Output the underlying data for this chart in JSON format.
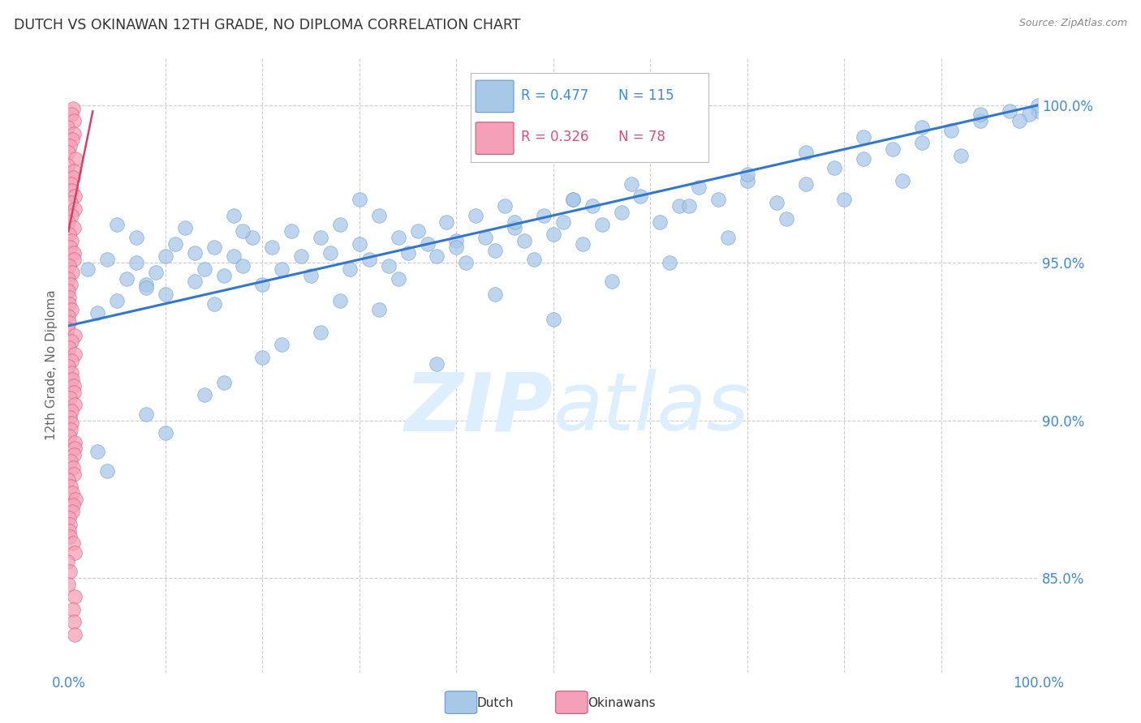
{
  "title": "DUTCH VS OKINAWAN 12TH GRADE, NO DIPLOMA CORRELATION CHART",
  "source": "Source: ZipAtlas.com",
  "ylabel": "12th Grade, No Diploma",
  "ytick_positions": [
    0.85,
    0.9,
    0.95,
    1.0
  ],
  "ytick_labels": [
    "85.0%",
    "90.0%",
    "95.0%",
    "100.0%"
  ],
  "xlim": [
    0.0,
    1.0
  ],
  "ylim": [
    0.82,
    1.015
  ],
  "dutch_color": "#a8c8e8",
  "dutch_edge_color": "#6699cc",
  "okinawan_color": "#f4a0b8",
  "okinawan_edge_color": "#cc5577",
  "trend_color": "#3377cc",
  "trend_linewidth": 2.2,
  "okinawan_trend_color": "#cc4466",
  "okinawan_trend_linewidth": 1.8,
  "background_color": "#ffffff",
  "grid_color": "#cccccc",
  "axis_label_color": "#4488cc",
  "title_color": "#333333",
  "source_color": "#888888",
  "watermark_color": "#ddeeff",
  "scatter_size": 160,
  "dutch_x": [
    0.02,
    0.03,
    0.04,
    0.05,
    0.05,
    0.06,
    0.07,
    0.07,
    0.08,
    0.09,
    0.1,
    0.1,
    0.11,
    0.12,
    0.13,
    0.13,
    0.14,
    0.15,
    0.15,
    0.16,
    0.17,
    0.17,
    0.18,
    0.19,
    0.2,
    0.21,
    0.22,
    0.23,
    0.24,
    0.25,
    0.26,
    0.27,
    0.28,
    0.29,
    0.3,
    0.31,
    0.32,
    0.33,
    0.34,
    0.35,
    0.36,
    0.37,
    0.38,
    0.39,
    0.4,
    0.41,
    0.42,
    0.43,
    0.44,
    0.45,
    0.46,
    0.47,
    0.48,
    0.49,
    0.5,
    0.51,
    0.52,
    0.53,
    0.54,
    0.55,
    0.57,
    0.59,
    0.61,
    0.63,
    0.65,
    0.67,
    0.7,
    0.73,
    0.76,
    0.79,
    0.82,
    0.85,
    0.88,
    0.91,
    0.94,
    0.97,
    1.0,
    1.0,
    0.99,
    0.98,
    0.03,
    0.08,
    0.14,
    0.2,
    0.26,
    0.32,
    0.38,
    0.44,
    0.5,
    0.56,
    0.62,
    0.68,
    0.74,
    0.8,
    0.86,
    0.92,
    0.04,
    0.1,
    0.16,
    0.22,
    0.28,
    0.34,
    0.4,
    0.46,
    0.52,
    0.58,
    0.64,
    0.7,
    0.76,
    0.82,
    0.88,
    0.94,
    0.08,
    0.18,
    0.3
  ],
  "dutch_y": [
    0.948,
    0.934,
    0.951,
    0.938,
    0.962,
    0.945,
    0.95,
    0.958,
    0.943,
    0.947,
    0.952,
    0.94,
    0.956,
    0.961,
    0.944,
    0.953,
    0.948,
    0.937,
    0.955,
    0.946,
    0.952,
    0.965,
    0.949,
    0.958,
    0.943,
    0.955,
    0.948,
    0.96,
    0.952,
    0.946,
    0.958,
    0.953,
    0.962,
    0.948,
    0.956,
    0.951,
    0.965,
    0.949,
    0.958,
    0.953,
    0.96,
    0.956,
    0.952,
    0.963,
    0.957,
    0.95,
    0.965,
    0.958,
    0.954,
    0.968,
    0.961,
    0.957,
    0.951,
    0.965,
    0.959,
    0.963,
    0.97,
    0.956,
    0.968,
    0.962,
    0.966,
    0.971,
    0.963,
    0.968,
    0.974,
    0.97,
    0.976,
    0.969,
    0.975,
    0.98,
    0.983,
    0.986,
    0.988,
    0.992,
    0.995,
    0.998,
    1.0,
    0.998,
    0.997,
    0.995,
    0.89,
    0.902,
    0.908,
    0.92,
    0.928,
    0.935,
    0.918,
    0.94,
    0.932,
    0.944,
    0.95,
    0.958,
    0.964,
    0.97,
    0.976,
    0.984,
    0.884,
    0.896,
    0.912,
    0.924,
    0.938,
    0.945,
    0.955,
    0.963,
    0.97,
    0.975,
    0.968,
    0.978,
    0.985,
    0.99,
    0.993,
    0.997,
    0.942,
    0.96,
    0.97
  ],
  "okinawan_x": [
    0.003,
    0.003,
    0.003,
    0.003,
    0.003,
    0.003,
    0.003,
    0.003,
    0.003,
    0.003,
    0.003,
    0.003,
    0.003,
    0.003,
    0.003,
    0.003,
    0.003,
    0.003,
    0.003,
    0.003,
    0.003,
    0.003,
    0.003,
    0.003,
    0.003,
    0.003,
    0.003,
    0.003,
    0.003,
    0.003,
    0.003,
    0.003,
    0.003,
    0.003,
    0.003,
    0.003,
    0.003,
    0.003,
    0.003,
    0.003,
    0.003,
    0.003,
    0.003,
    0.003,
    0.003,
    0.003,
    0.003,
    0.003,
    0.003,
    0.003,
    0.003,
    0.003,
    0.003,
    0.003,
    0.003,
    0.003,
    0.003,
    0.003,
    0.003,
    0.003,
    0.003,
    0.003,
    0.003,
    0.003,
    0.003,
    0.003,
    0.003,
    0.003,
    0.003,
    0.003,
    0.003,
    0.003,
    0.003,
    0.003,
    0.003,
    0.003,
    0.003,
    0.003
  ],
  "okinawan_y": [
    0.999,
    0.997,
    0.995,
    0.993,
    0.991,
    0.989,
    0.987,
    0.985,
    0.983,
    0.981,
    0.979,
    0.977,
    0.975,
    0.973,
    0.971,
    0.969,
    0.967,
    0.965,
    0.963,
    0.961,
    0.959,
    0.957,
    0.955,
    0.953,
    0.951,
    0.949,
    0.947,
    0.945,
    0.943,
    0.941,
    0.939,
    0.937,
    0.935,
    0.933,
    0.931,
    0.929,
    0.927,
    0.925,
    0.923,
    0.921,
    0.919,
    0.917,
    0.915,
    0.913,
    0.911,
    0.909,
    0.907,
    0.905,
    0.903,
    0.901,
    0.899,
    0.897,
    0.895,
    0.893,
    0.891,
    0.889,
    0.887,
    0.885,
    0.883,
    0.881,
    0.879,
    0.877,
    0.875,
    0.873,
    0.871,
    0.869,
    0.867,
    0.865,
    0.863,
    0.861,
    0.858,
    0.855,
    0.852,
    0.848,
    0.844,
    0.84,
    0.836,
    0.832
  ],
  "trend_x0": 0.0,
  "trend_y0": 0.93,
  "trend_x1": 1.0,
  "trend_y1": 1.0,
  "ok_trend_x0": 0.0,
  "ok_trend_y0": 0.96,
  "ok_trend_x1": 0.025,
  "ok_trend_y1": 0.998
}
